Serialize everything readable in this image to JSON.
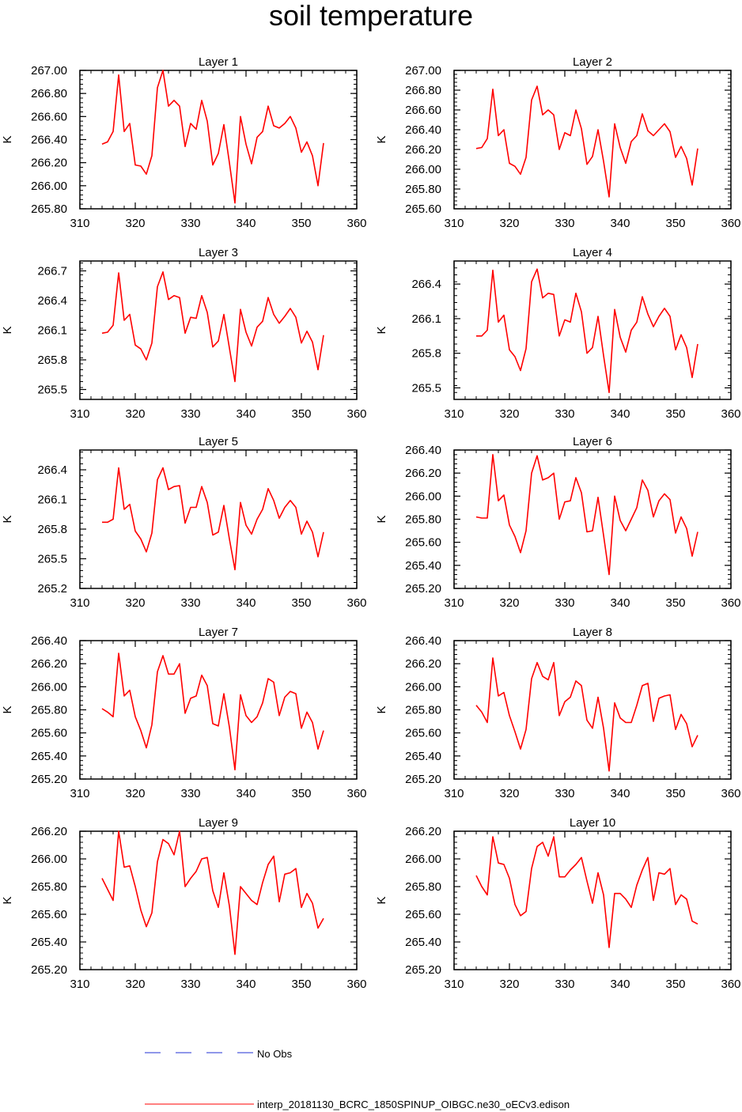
{
  "title": "soil temperature",
  "chart_data": {
    "type": "line",
    "title": "soil temperature",
    "x": [
      314,
      315,
      316,
      317,
      318,
      319,
      320,
      321,
      322,
      323,
      324,
      325,
      326,
      327,
      328,
      329,
      330,
      331,
      332,
      333,
      334,
      335,
      336,
      337,
      338,
      339,
      340,
      341,
      342,
      343,
      344,
      345,
      346,
      347,
      348,
      349,
      350,
      351,
      352,
      353,
      354
    ],
    "xlim": [
      310,
      360
    ],
    "xticks": [
      "310",
      "320",
      "330",
      "340",
      "350",
      "360"
    ],
    "ylabel": "K",
    "legend": [
      {
        "name": "No Obs",
        "color": "#1f2fd6",
        "style": "dashed",
        "placement": "bottom"
      },
      {
        "name": "interp_20181130_BCRC_1850SPINUP_OIBGC.ne30_oECv3.edison",
        "color": "#ff0000",
        "style": "solid",
        "placement": "bottom"
      }
    ],
    "panels": [
      {
        "title": "Layer 1",
        "ylim": [
          265.8,
          267.0
        ],
        "yticks": [
          "265.80",
          "266.00",
          "266.20",
          "266.40",
          "266.60",
          "266.80",
          "267.00"
        ],
        "series": [
          {
            "name": "interp_20181130_BCRC_1850SPINUP_OIBGC.ne30_oECv3.edison",
            "values": [
              266.36,
              266.38,
              266.47,
              266.96,
              266.47,
              266.54,
              266.18,
              266.17,
              266.1,
              266.26,
              266.85,
              267.0,
              266.69,
              266.74,
              266.69,
              266.34,
              266.54,
              266.49,
              266.74,
              266.56,
              266.18,
              266.28,
              266.53,
              266.2,
              265.85,
              266.6,
              266.36,
              266.19,
              266.42,
              266.47,
              266.69,
              266.52,
              266.5,
              266.54,
              266.6,
              266.5,
              266.29,
              266.38,
              266.26,
              266.0,
              266.37
            ]
          }
        ]
      },
      {
        "title": "Layer 2",
        "ylim": [
          265.6,
          267.0
        ],
        "yticks": [
          "265.60",
          "265.80",
          "266.00",
          "266.20",
          "266.40",
          "266.60",
          "266.80",
          "267.00"
        ],
        "series": [
          {
            "name": "interp_20181130_BCRC_1850SPINUP_OIBGC.ne30_oECv3.edison",
            "values": [
              266.21,
              266.22,
              266.31,
              266.81,
              266.34,
              266.4,
              266.06,
              266.03,
              265.95,
              266.12,
              266.7,
              266.84,
              266.55,
              266.6,
              266.55,
              266.2,
              266.37,
              266.34,
              266.6,
              266.41,
              266.05,
              266.13,
              266.4,
              266.08,
              265.72,
              266.46,
              266.22,
              266.06,
              266.28,
              266.34,
              266.56,
              266.39,
              266.34,
              266.4,
              266.46,
              266.38,
              266.12,
              266.23,
              266.11,
              265.84,
              266.21
            ]
          }
        ]
      },
      {
        "title": "Layer 3",
        "ylim": [
          265.4,
          266.8
        ],
        "yticks": [
          "265.5",
          "265.8",
          "266.1",
          "266.4",
          "266.7"
        ],
        "series": [
          {
            "name": "interp_20181130_BCRC_1850SPINUP_OIBGC.ne30_oECv3.edison",
            "values": [
              266.07,
              266.08,
              266.15,
              266.68,
              266.2,
              266.26,
              265.95,
              265.91,
              265.8,
              265.97,
              266.54,
              266.69,
              266.41,
              266.45,
              266.43,
              266.07,
              266.23,
              266.22,
              266.45,
              266.28,
              265.93,
              265.99,
              266.26,
              265.92,
              265.58,
              266.31,
              266.08,
              265.94,
              266.13,
              266.19,
              266.43,
              266.26,
              266.17,
              266.24,
              266.32,
              266.23,
              265.97,
              266.09,
              265.98,
              265.7,
              266.05
            ]
          }
        ]
      },
      {
        "title": "Layer 4",
        "ylim": [
          265.4,
          266.6
        ],
        "yticks": [
          "265.5",
          "265.8",
          "266.1",
          "266.4"
        ],
        "series": [
          {
            "name": "interp_20181130_BCRC_1850SPINUP_OIBGC.ne30_oECv3.edison",
            "values": [
              265.95,
              265.95,
              266.0,
              266.52,
              266.07,
              266.13,
              265.83,
              265.77,
              265.65,
              265.84,
              266.42,
              266.53,
              266.28,
              266.32,
              266.31,
              265.95,
              266.09,
              266.07,
              266.32,
              266.16,
              265.8,
              265.85,
              266.12,
              265.78,
              265.46,
              266.18,
              265.94,
              265.81,
              266.0,
              266.07,
              266.29,
              266.14,
              266.03,
              266.12,
              266.19,
              266.12,
              265.83,
              265.96,
              265.85,
              265.59,
              265.88
            ]
          }
        ]
      },
      {
        "title": "Layer 5",
        "ylim": [
          265.2,
          266.6
        ],
        "yticks": [
          "265.2",
          "265.5",
          "265.8",
          "266.1",
          "266.4"
        ],
        "series": [
          {
            "name": "interp_20181130_BCRC_1850SPINUP_OIBGC.ne30_oECv3.edison",
            "values": [
              265.87,
              265.87,
              265.9,
              266.42,
              266.0,
              266.05,
              265.78,
              265.7,
              265.57,
              265.76,
              266.3,
              266.42,
              266.2,
              266.23,
              266.24,
              265.86,
              266.02,
              266.02,
              266.23,
              266.07,
              265.74,
              265.77,
              266.04,
              265.7,
              265.39,
              266.07,
              265.84,
              265.75,
              265.9,
              266.0,
              266.21,
              266.09,
              265.91,
              266.02,
              266.09,
              266.02,
              265.75,
              265.88,
              265.77,
              265.52,
              265.77
            ]
          }
        ]
      },
      {
        "title": "Layer 6",
        "ylim": [
          265.2,
          266.4
        ],
        "yticks": [
          "265.20",
          "265.40",
          "265.60",
          "265.80",
          "266.00",
          "266.20",
          "266.40"
        ],
        "series": [
          {
            "name": "interp_20181130_BCRC_1850SPINUP_OIBGC.ne30_oECv3.edison",
            "values": [
              265.82,
              265.81,
              265.81,
              266.36,
              265.96,
              266.01,
              265.75,
              265.65,
              265.51,
              265.7,
              266.2,
              266.35,
              266.14,
              266.16,
              266.2,
              265.8,
              265.95,
              265.96,
              266.16,
              266.03,
              265.69,
              265.7,
              265.99,
              265.66,
              265.32,
              266.0,
              265.79,
              265.7,
              265.8,
              265.9,
              266.14,
              266.05,
              265.82,
              265.96,
              266.02,
              265.97,
              265.68,
              265.82,
              265.72,
              265.48,
              265.69
            ]
          }
        ]
      },
      {
        "title": "Layer 7",
        "ylim": [
          265.2,
          266.4
        ],
        "yticks": [
          "265.20",
          "265.40",
          "265.60",
          "265.80",
          "266.00",
          "266.20",
          "266.40"
        ],
        "series": [
          {
            "name": "interp_20181130_BCRC_1850SPINUP_OIBGC.ne30_oECv3.edison",
            "values": [
              265.81,
              265.78,
              265.74,
              266.29,
              265.92,
              265.97,
              265.74,
              265.62,
              265.47,
              265.67,
              266.13,
              266.27,
              266.11,
              266.11,
              266.2,
              265.77,
              265.9,
              265.92,
              266.1,
              266.01,
              265.68,
              265.66,
              265.94,
              265.65,
              265.28,
              265.93,
              265.75,
              265.69,
              265.74,
              265.86,
              266.07,
              266.04,
              265.75,
              265.91,
              265.96,
              265.94,
              265.64,
              265.78,
              265.69,
              265.46,
              265.62
            ]
          }
        ]
      },
      {
        "title": "Layer 8",
        "ylim": [
          265.2,
          266.4
        ],
        "yticks": [
          "265.20",
          "265.40",
          "265.60",
          "265.80",
          "266.00",
          "266.20",
          "266.40"
        ],
        "series": [
          {
            "name": "interp_20181130_BCRC_1850SPINUP_OIBGC.ne30_oECv3.edison",
            "values": [
              265.84,
              265.78,
              265.69,
              266.25,
              265.92,
              265.95,
              265.75,
              265.61,
              265.46,
              265.63,
              266.07,
              266.21,
              266.09,
              266.06,
              266.21,
              265.75,
              265.87,
              265.91,
              266.05,
              266.01,
              265.71,
              265.64,
              265.91,
              265.64,
              265.27,
              265.86,
              265.73,
              265.69,
              265.69,
              265.84,
              266.01,
              266.03,
              265.7,
              265.9,
              265.92,
              265.93,
              265.63,
              265.76,
              265.68,
              265.48,
              265.58
            ]
          }
        ]
      },
      {
        "title": "Layer 9",
        "ylim": [
          265.2,
          266.2
        ],
        "yticks": [
          "265.20",
          "265.40",
          "265.60",
          "265.80",
          "266.00",
          "266.20"
        ],
        "series": [
          {
            "name": "interp_20181130_BCRC_1850SPINUP_OIBGC.ne30_oECv3.edison",
            "values": [
              265.86,
              265.78,
              265.7,
              266.2,
              265.94,
              265.95,
              265.8,
              265.63,
              265.51,
              265.61,
              265.98,
              266.14,
              266.11,
              266.03,
              266.2,
              265.8,
              265.86,
              265.91,
              266.0,
              266.01,
              265.77,
              265.65,
              265.9,
              265.66,
              265.31,
              265.8,
              265.75,
              265.7,
              265.67,
              265.83,
              265.96,
              266.02,
              265.69,
              265.89,
              265.9,
              265.93,
              265.65,
              265.75,
              265.68,
              265.5,
              265.57
            ]
          }
        ]
      },
      {
        "title": "Layer 10",
        "ylim": [
          265.2,
          266.2
        ],
        "yticks": [
          "265.20",
          "265.40",
          "265.60",
          "265.80",
          "266.00",
          "266.20"
        ],
        "series": [
          {
            "name": "interp_20181130_BCRC_1850SPINUP_OIBGC.ne30_oECv3.edison",
            "values": [
              265.88,
              265.8,
              265.74,
              266.16,
              265.97,
              265.96,
              265.86,
              265.67,
              265.59,
              265.62,
              265.93,
              266.09,
              266.12,
              266.02,
              266.16,
              265.87,
              265.87,
              265.92,
              265.96,
              266.01,
              265.84,
              265.68,
              265.9,
              265.74,
              265.36,
              265.75,
              265.75,
              265.71,
              265.65,
              265.81,
              265.92,
              266.01,
              265.7,
              265.9,
              265.89,
              265.93,
              265.67,
              265.74,
              265.71,
              265.55,
              265.53
            ]
          }
        ]
      }
    ]
  }
}
